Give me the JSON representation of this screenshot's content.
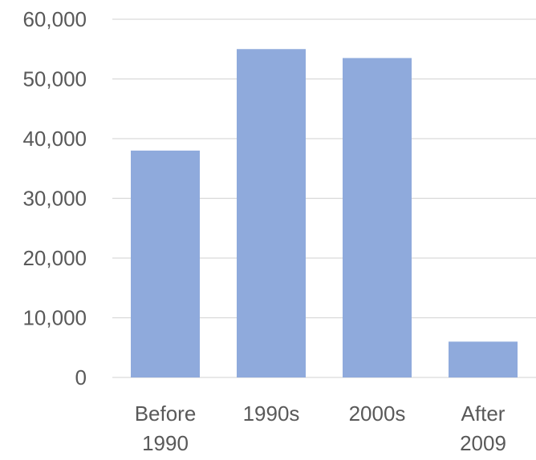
{
  "chart_data": {
    "type": "bar",
    "categories": [
      [
        "Before",
        "1990"
      ],
      [
        "1990s"
      ],
      [
        "2000s"
      ],
      [
        "After",
        "2009"
      ]
    ],
    "values": [
      38000,
      55000,
      53500,
      6000
    ],
    "ylim": [
      0,
      60000
    ],
    "yticks": [
      0,
      10000,
      20000,
      30000,
      40000,
      50000,
      60000
    ],
    "ytick_labels": [
      "0",
      "10,000",
      "20,000",
      "30,000",
      "40,000",
      "50,000",
      "60,000"
    ],
    "grid": true,
    "bar_color": "#8faadc",
    "grid_color": "#d9d9d9",
    "text_color": "#595959",
    "title": "",
    "xlabel": "",
    "ylabel": ""
  }
}
